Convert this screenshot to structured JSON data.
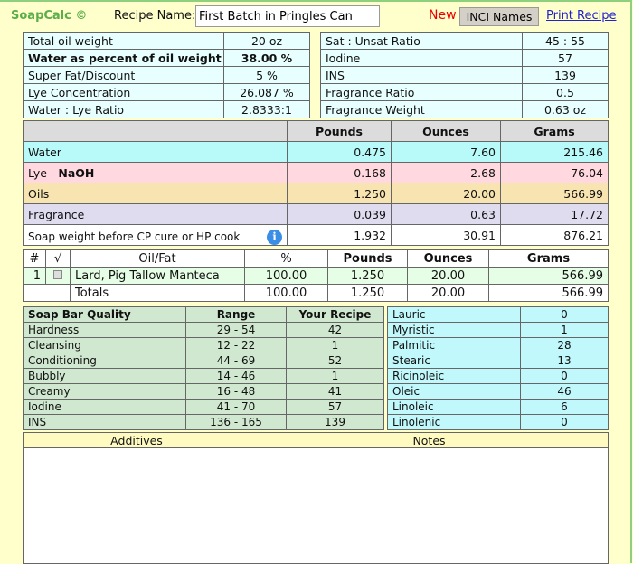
{
  "header": {
    "brand": "SoapCalc ©",
    "recipe_label": "Recipe Name:",
    "recipe_name": "First Batch in Pringles Can",
    "new_label": "New",
    "inci_button": "INCI Names",
    "print_link": "Print Recipe"
  },
  "summary_left": [
    [
      "Total oil weight",
      "20 oz"
    ],
    [
      "Water as percent of oil weight",
      "38.00 %"
    ],
    [
      "Super Fat/Discount",
      "5 %"
    ],
    [
      "Lye Concentration",
      "26.087 %"
    ],
    [
      "Water : Lye Ratio",
      "2.8333:1"
    ]
  ],
  "summary_right": [
    [
      "Sat : Unsat Ratio",
      "45 : 55"
    ],
    [
      "Iodine",
      "57"
    ],
    [
      "INS",
      "139"
    ],
    [
      "Fragrance Ratio",
      "0.5"
    ],
    [
      "Fragrance Weight",
      "0.63 oz"
    ]
  ],
  "weights": {
    "headers": [
      "Pounds",
      "Ounces",
      "Grams"
    ],
    "rows": [
      {
        "label": "Water",
        "v": [
          "0.475",
          "7.60",
          "215.46"
        ]
      },
      {
        "label": "Lye - ",
        "bold": "NaOH",
        "v": [
          "0.168",
          "2.68",
          "76.04"
        ]
      },
      {
        "label": "Oils",
        "v": [
          "1.250",
          "20.00",
          "566.99"
        ]
      },
      {
        "label": "Fragrance",
        "v": [
          "0.039",
          "0.63",
          "17.72"
        ]
      },
      {
        "label": "Soap weight before CP cure or HP cook",
        "v": [
          "1.932",
          "30.91",
          "876.21"
        ]
      }
    ]
  },
  "oils": {
    "headers": [
      "#",
      "√",
      "Oil/Fat",
      "%",
      "Pounds",
      "Ounces",
      "Grams"
    ],
    "rows": [
      {
        "n": "1",
        "name": "Lard, Pig Tallow Manteca",
        "pct": "100.00",
        "lb": "1.250",
        "oz": "20.00",
        "g": "566.99"
      }
    ],
    "totals": {
      "label": "Totals",
      "pct": "100.00",
      "lb": "1.250",
      "oz": "20.00",
      "g": "566.99"
    }
  },
  "qualities": {
    "headers": [
      "Soap Bar Quality",
      "Range",
      "Your Recipe"
    ],
    "rows": [
      [
        "Hardness",
        "29 - 54",
        "42"
      ],
      [
        "Cleansing",
        "12 - 22",
        "1"
      ],
      [
        "Conditioning",
        "44 - 69",
        "52"
      ],
      [
        "Bubbly",
        "14 - 46",
        "1"
      ],
      [
        "Creamy",
        "16 - 48",
        "41"
      ],
      [
        "Iodine",
        "41 - 70",
        "57"
      ],
      [
        "INS",
        "136 - 165",
        "139"
      ]
    ]
  },
  "fatty_acids": [
    [
      "Lauric",
      "0"
    ],
    [
      "Myristic",
      "1"
    ],
    [
      "Palmitic",
      "28"
    ],
    [
      "Stearic",
      "13"
    ],
    [
      "Ricinoleic",
      "0"
    ],
    [
      "Oleic",
      "46"
    ],
    [
      "Linoleic",
      "6"
    ],
    [
      "Linolenic",
      "0"
    ]
  ],
  "notes": {
    "additives_label": "Additives",
    "notes_label": "Notes"
  }
}
